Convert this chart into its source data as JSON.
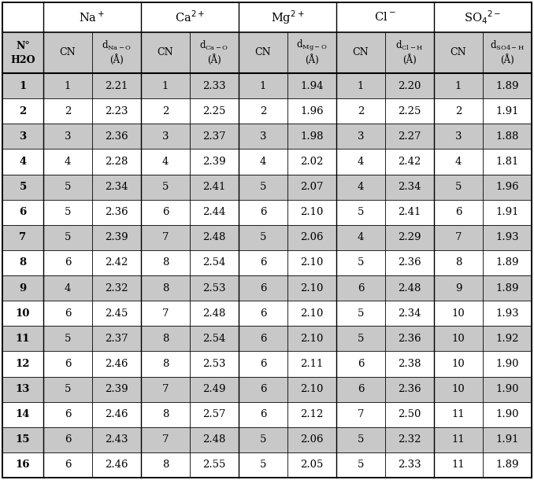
{
  "rows": [
    [
      "1",
      "1",
      "2.21",
      "1",
      "2.33",
      "1",
      "1.94",
      "1",
      "2.20",
      "1",
      "1.89"
    ],
    [
      "2",
      "2",
      "2.23",
      "2",
      "2.25",
      "2",
      "1.96",
      "2",
      "2.25",
      "2",
      "1.91"
    ],
    [
      "3",
      "3",
      "2.36",
      "3",
      "2.37",
      "3",
      "1.98",
      "3",
      "2.27",
      "3",
      "1.88"
    ],
    [
      "4",
      "4",
      "2.28",
      "4",
      "2.39",
      "4",
      "2.02",
      "4",
      "2.42",
      "4",
      "1.81"
    ],
    [
      "5",
      "5",
      "2.34",
      "5",
      "2.41",
      "5",
      "2.07",
      "4",
      "2.34",
      "5",
      "1.96"
    ],
    [
      "6",
      "5",
      "2.36",
      "6",
      "2.44",
      "6",
      "2.10",
      "5",
      "2.41",
      "6",
      "1.91"
    ],
    [
      "7",
      "5",
      "2.39",
      "7",
      "2.48",
      "5",
      "2.06",
      "4",
      "2.29",
      "7",
      "1.93"
    ],
    [
      "8",
      "6",
      "2.42",
      "8",
      "2.54",
      "6",
      "2.10",
      "5",
      "2.36",
      "8",
      "1.89"
    ],
    [
      "9",
      "4",
      "2.32",
      "8",
      "2.53",
      "6",
      "2.10",
      "6",
      "2.48",
      "9",
      "1.89"
    ],
    [
      "10",
      "6",
      "2.45",
      "7",
      "2.48",
      "6",
      "2.10",
      "5",
      "2.34",
      "10",
      "1.93"
    ],
    [
      "11",
      "5",
      "2.37",
      "8",
      "2.54",
      "6",
      "2.10",
      "5",
      "2.36",
      "10",
      "1.92"
    ],
    [
      "12",
      "6",
      "2.46",
      "8",
      "2.53",
      "6",
      "2.11",
      "6",
      "2.38",
      "10",
      "1.90"
    ],
    [
      "13",
      "5",
      "2.39",
      "7",
      "2.49",
      "6",
      "2.10",
      "6",
      "2.36",
      "10",
      "1.90"
    ],
    [
      "14",
      "6",
      "2.46",
      "8",
      "2.57",
      "6",
      "2.12",
      "7",
      "2.50",
      "11",
      "1.90"
    ],
    [
      "15",
      "6",
      "2.43",
      "7",
      "2.48",
      "5",
      "2.06",
      "5",
      "2.32",
      "11",
      "1.91"
    ],
    [
      "16",
      "6",
      "2.46",
      "8",
      "2.55",
      "5",
      "2.05",
      "5",
      "2.33",
      "11",
      "1.89"
    ]
  ],
  "bg_gray": "#c8c8c8",
  "bg_white": "#ffffff",
  "border_color": "#000000",
  "fig_w": 6.78,
  "fig_h": 6.1,
  "dpi": 100
}
